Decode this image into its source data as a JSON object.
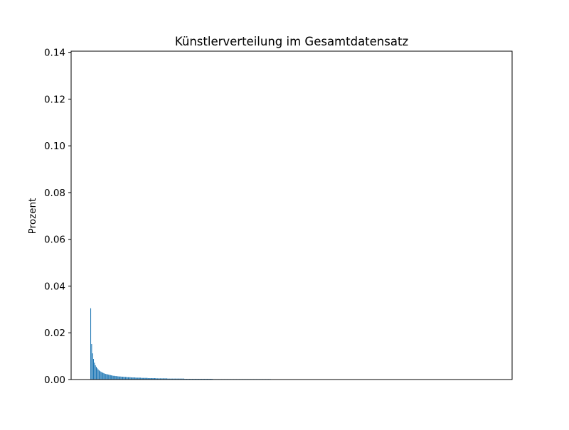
{
  "chart_data": {
    "type": "bar",
    "title": "Künstlerverteilung im Gesamtdatensatz",
    "xlabel": "",
    "ylabel": "Prozent",
    "ylim": [
      0.0,
      0.1405
    ],
    "yticks": [
      "0.00",
      "0.02",
      "0.04",
      "0.06",
      "0.08",
      "0.10",
      "0.12",
      "0.14"
    ],
    "ytick_values": [
      0.0,
      0.02,
      0.04,
      0.06,
      0.08,
      0.1,
      0.12,
      0.14
    ],
    "xticks": [],
    "grid": false,
    "bar_color": "#1f77b4",
    "categories_count": 192,
    "values": [
      0.0305,
      0.0152,
      0.0112,
      0.0088,
      0.0072,
      0.0061,
      0.0054,
      0.0048,
      0.0043,
      0.0039,
      0.0036,
      0.0033,
      0.0031,
      0.0029,
      0.0027,
      0.0025,
      0.0024,
      0.0023,
      0.0022,
      0.0021,
      0.002,
      0.0019,
      0.0018,
      0.0017,
      0.0016,
      0.0016,
      0.0015,
      0.0015,
      0.0014,
      0.0014,
      0.0013,
      0.0013,
      0.0013,
      0.0012,
      0.0012,
      0.0012,
      0.0011,
      0.0011,
      0.0011,
      0.001,
      0.001,
      0.001,
      0.001,
      0.0009,
      0.0009,
      0.0009,
      0.0009,
      0.0009,
      0.0008,
      0.0008,
      0.0008,
      0.0008,
      0.0008,
      0.0008,
      0.0007,
      0.0007,
      0.0007,
      0.0007,
      0.0007,
      0.0007,
      0.0007,
      0.0006,
      0.0006,
      0.0006,
      0.0006,
      0.0006,
      0.0006,
      0.0006,
      0.0006,
      0.0006,
      0.0005,
      0.0005,
      0.0005,
      0.0005,
      0.0005,
      0.0005,
      0.0005,
      0.0005,
      0.0005,
      0.0005,
      0.0005,
      0.0005,
      0.0004,
      0.0004,
      0.0004,
      0.0004,
      0.0004,
      0.0004,
      0.0004,
      0.0004,
      0.0004,
      0.0004,
      0.0004,
      0.0004,
      0.0004,
      0.0004,
      0.0004,
      0.0004,
      0.0004,
      0.0004,
      0.0003,
      0.0003,
      0.0003,
      0.0003,
      0.0003,
      0.0003,
      0.0003,
      0.0003,
      0.0003,
      0.0003,
      0.0003,
      0.0003,
      0.0003,
      0.0003,
      0.0003,
      0.0003,
      0.0003,
      0.0003,
      0.0003,
      0.0003,
      0.0003,
      0.0003,
      0.0003,
      0.0003,
      0.0003,
      0.0003,
      0.0003,
      0.0003,
      0.0003,
      0.0003,
      0.0002,
      0.0002,
      0.0002,
      0.0002,
      0.0002,
      0.0002,
      0.0002,
      0.0002,
      0.0002,
      0.0002,
      0.0002,
      0.0002,
      0.0002,
      0.0002,
      0.0002,
      0.0002,
      0.0002,
      0.0002,
      0.0002,
      0.0002,
      0.0002,
      0.0002,
      0.0002,
      0.0002,
      0.0002,
      0.0002,
      0.0002,
      0.0002,
      0.0002,
      0.0002,
      0.0002,
      0.0002,
      0.0002,
      0.0002,
      0.0002,
      0.0002,
      0.0002,
      0.0002,
      0.0002,
      0.0002,
      0.0002,
      0.0002,
      0.0002,
      0.0002,
      0.0002,
      0.0002,
      0.0002,
      0.0002,
      0.0002,
      0.0002,
      0.0002,
      0.0002,
      0.0002,
      0.0002,
      0.0002,
      0.0002,
      0.0002,
      0.0002,
      0.0002,
      0.0002,
      0.0002,
      0.0002
    ]
  }
}
